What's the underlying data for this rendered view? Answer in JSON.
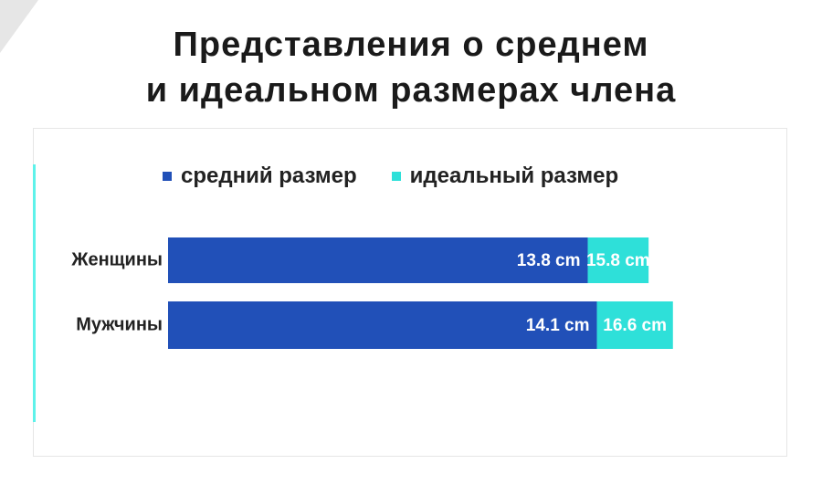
{
  "chart_data": {
    "type": "bar",
    "orientation": "horizontal",
    "stacked": true,
    "title": "Представления о среднем и идеальном размерах  члена",
    "title_lines": [
      "Представления о среднем",
      "и идеальном размерах  члена"
    ],
    "categories": [
      "Женщины",
      "Мужчины"
    ],
    "series": [
      {
        "name": "средний размер",
        "values": [
          13.8,
          14.1
        ],
        "labels": [
          "13.8 cm",
          "14.1 cm"
        ],
        "color": "#2150b8"
      },
      {
        "name": "идеальный размер",
        "values": [
          15.8,
          16.6
        ],
        "labels": [
          "15.8 cm",
          "16.6 cm"
        ],
        "color": "#2ee0d9"
      }
    ],
    "unit": "cm",
    "legend_position": "top",
    "grid": false,
    "xlabel": "",
    "ylabel": ""
  }
}
